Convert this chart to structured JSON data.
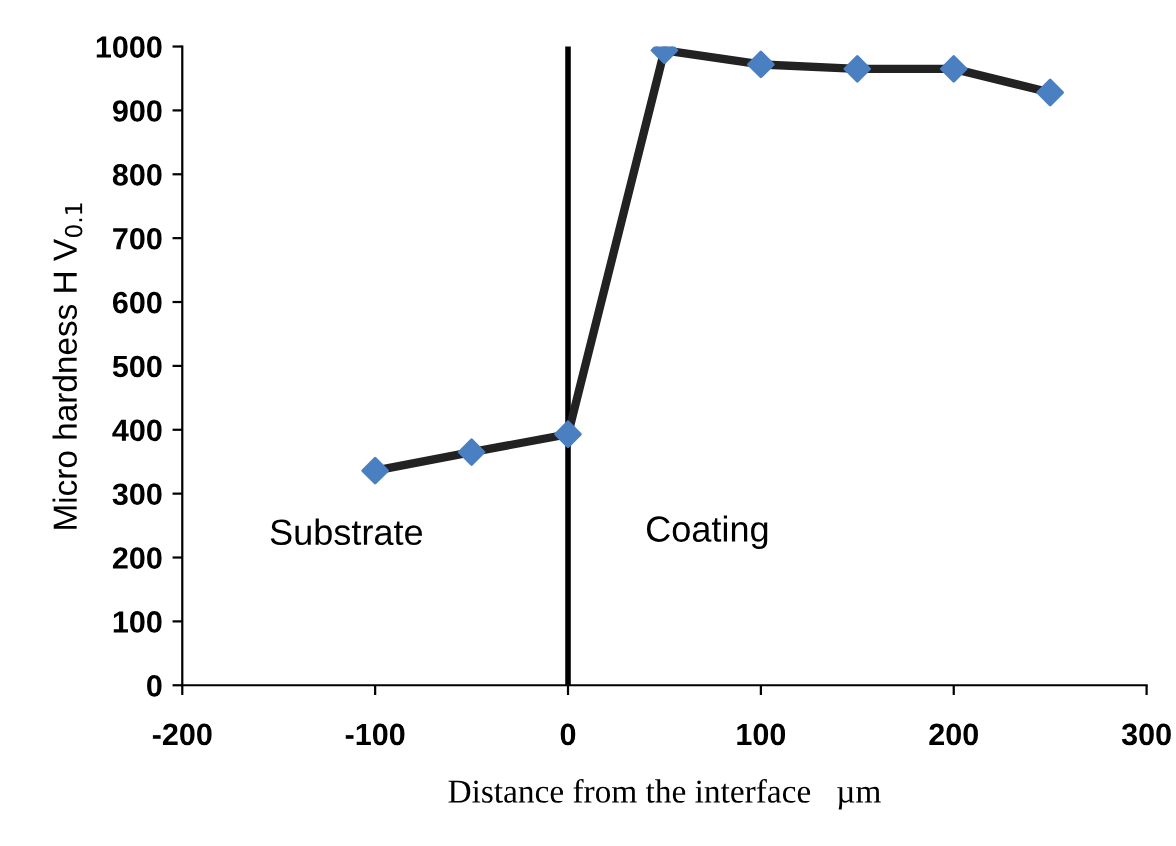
{
  "chart_data": {
    "type": "line",
    "x": [
      -100,
      -50,
      0,
      50,
      100,
      150,
      200,
      250
    ],
    "series": [
      {
        "color": "#222222",
        "colors": [
          "#4a7fc1",
          "#4a7fc1",
          "#4a7fc1",
          "#4a7fc1",
          "#4a7fc1",
          "#4a7fc1",
          "#4a7fc1",
          "#4a7fc1"
        ],
        "values": [
          336,
          365,
          393,
          994,
          972,
          965,
          965,
          928
        ]
      }
    ],
    "marker": "diamond",
    "line_style": "solid",
    "xlabel": "Distance from the interface   µm",
    "ylabel": "Micro hardness H V$_{0.1}$",
    "xlim": [
      -200,
      300
    ],
    "xticks": [
      -200,
      -100,
      0,
      100,
      200,
      300
    ],
    "ylim": [
      0,
      1000
    ],
    "yticks": [
      0,
      100,
      200,
      300,
      400,
      500,
      600,
      700,
      800,
      900,
      1000
    ],
    "ref_lines": [
      {
        "axis": "x",
        "value": 0,
        "color": "#000000",
        "line_style": "solid"
      }
    ],
    "annotations": [
      "Substrate",
      "Coating"
    ],
    "grid": false,
    "legend": false
  }
}
